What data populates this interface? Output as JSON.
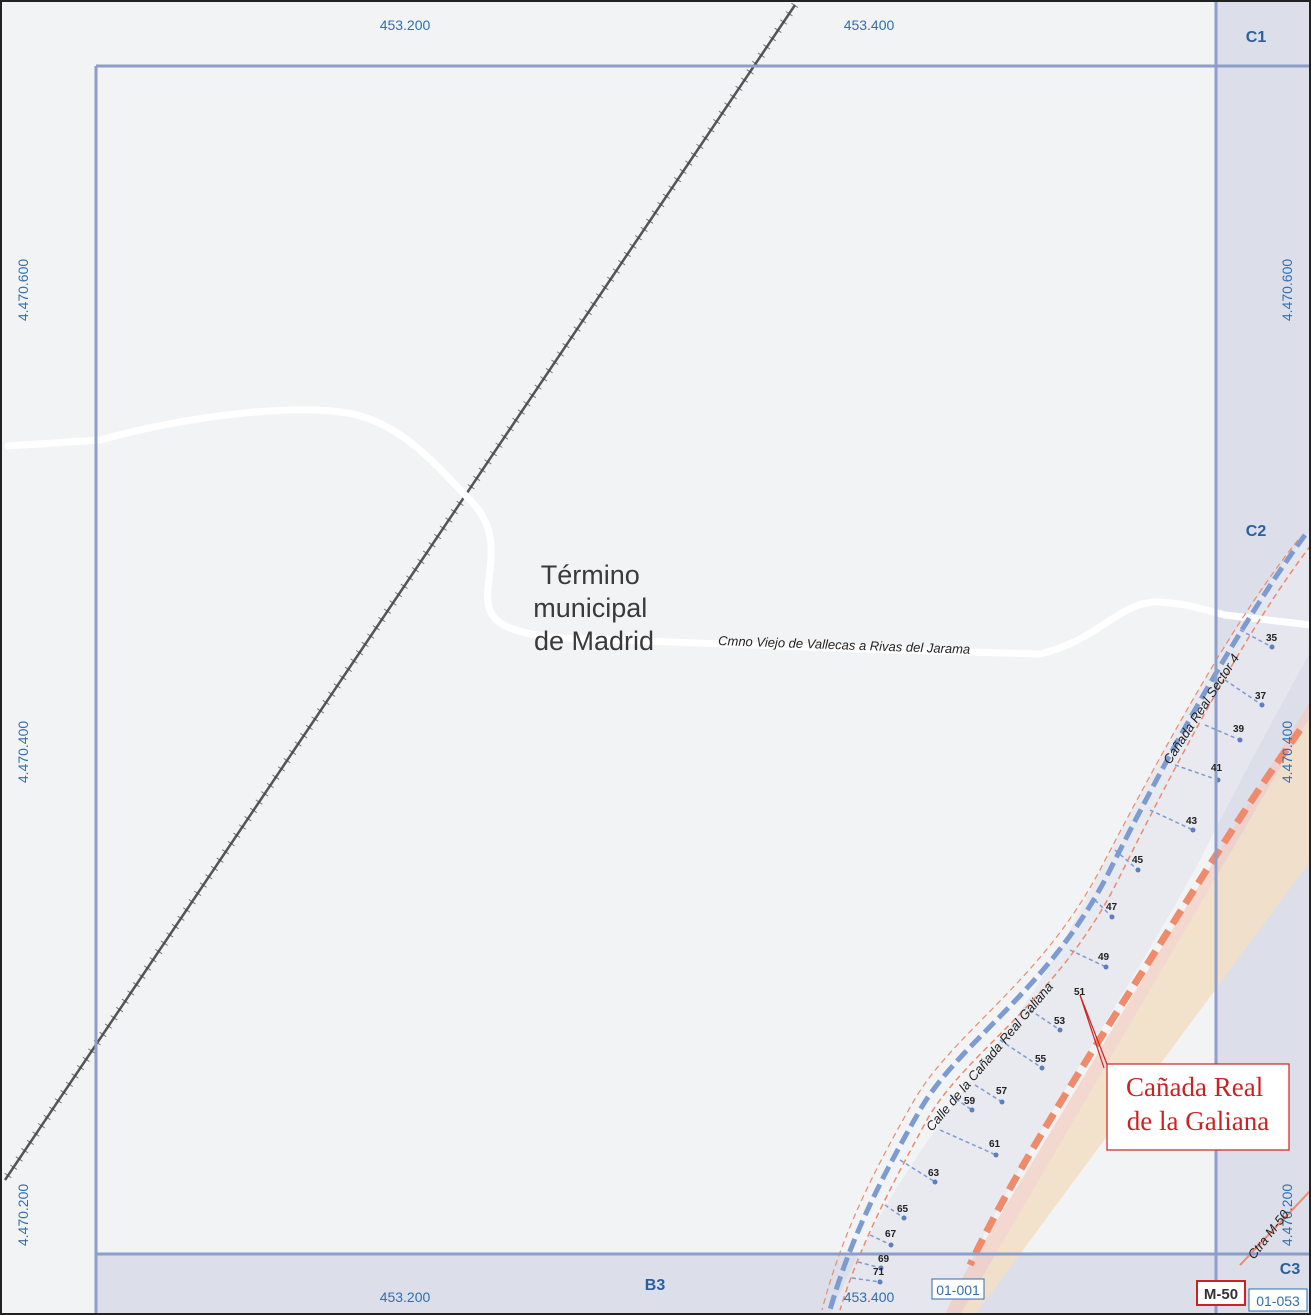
{
  "map": {
    "place_name": [
      "Término",
      "municipal",
      "de Madrid"
    ],
    "road_label": "Cmno Viejo de Vallecas a Rivas del Jarama",
    "street_label_sector": "Cañada Real Sector 4",
    "street_label_galiana": "Calle de la Cañada Real Galiana",
    "callout_label": [
      "Cañada Real",
      "de la Galiana"
    ],
    "highway_label": "Ctra M-50",
    "highway_shield": "M-50",
    "sheet_refs": [
      "01-001",
      "01-053"
    ]
  },
  "grid": {
    "x_coords_top": [
      "453.200",
      "453.400"
    ],
    "x_coords_bottom": [
      "453.200",
      "453.400"
    ],
    "y_coords_left": [
      "4.470.600",
      "4.470.400",
      "4.470.200"
    ],
    "y_coords_right": [
      "4.470.600",
      "4.470.400",
      "4.470.200"
    ],
    "cells": {
      "c1": "C1",
      "c2": "C2",
      "c3": "C3",
      "b3": "B3"
    }
  },
  "house_numbers": [
    "35",
    "37",
    "39",
    "41",
    "43",
    "45",
    "47",
    "49",
    "51",
    "53",
    "55",
    "57",
    "59",
    "61",
    "63",
    "65",
    "67",
    "69",
    "71"
  ],
  "colors": {
    "background": "#f2f3f5",
    "grid_line": "#8d9ec9",
    "margin_band": "#dcdeea",
    "coord_text": "#2f6fb0",
    "callout_red": "#cc2222",
    "highway_orange": "#ef8a6a"
  }
}
